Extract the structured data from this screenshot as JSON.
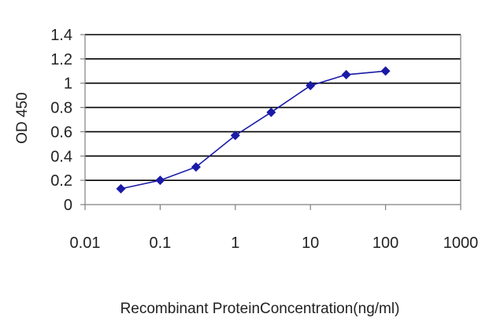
{
  "chart_data": {
    "type": "line",
    "xlabel": "Recombinant ProteinConcentration(ng/ml)",
    "ylabel": "OD 450",
    "x_scale": "log",
    "xlim": [
      0.01,
      1000
    ],
    "ylim": [
      0,
      1.4
    ],
    "grid": true,
    "legend": "none",
    "x_ticks": [
      "0.01",
      "0.1",
      "1",
      "10",
      "100",
      "1000"
    ],
    "y_ticks": [
      "0",
      "0.2",
      "0.4",
      "0.6",
      "0.8",
      "1",
      "1.2",
      "1.4"
    ],
    "colors": {
      "series": "#1a1aa8",
      "grid": "#000000",
      "axis": "#808080"
    },
    "series": [
      {
        "x": [
          0.03,
          0.1,
          0.3,
          1,
          3,
          10,
          30,
          100
        ],
        "y": [
          0.13,
          0.2,
          0.31,
          0.57,
          0.76,
          0.98,
          1.07,
          1.1
        ]
      }
    ]
  }
}
